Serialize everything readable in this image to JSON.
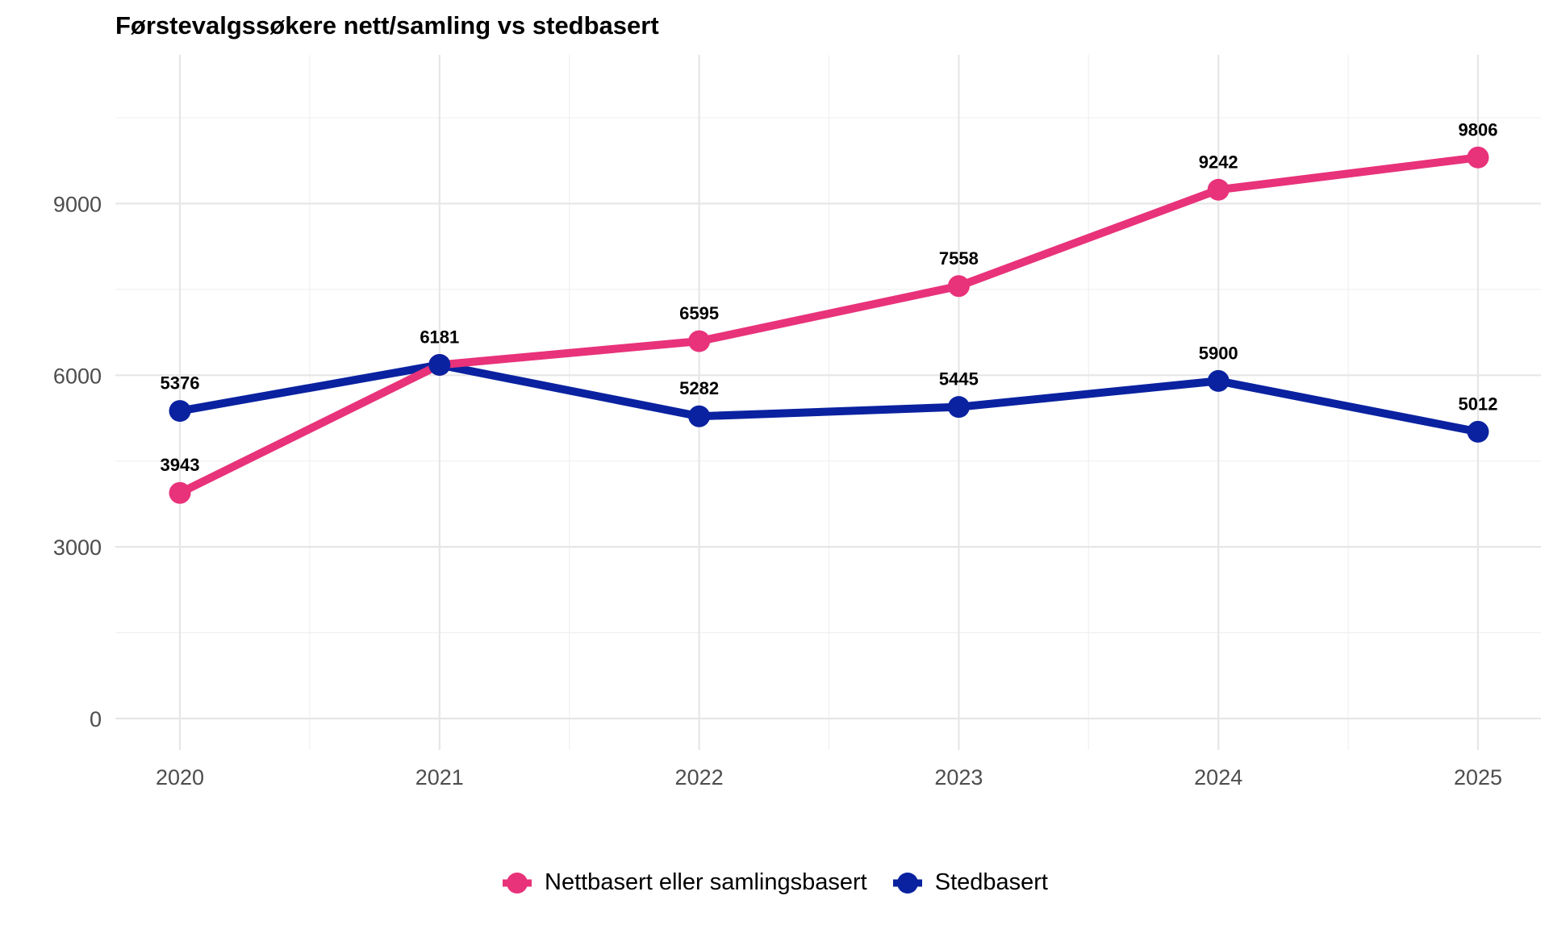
{
  "chart_data": {
    "type": "line",
    "title": "Førstevalgssøkere nett/samling vs stedbasert",
    "xlabel": "",
    "ylabel": "",
    "categories": [
      "2020",
      "2021",
      "2022",
      "2023",
      "2024",
      "2025"
    ],
    "y_ticks": [
      "0",
      "3000",
      "6000",
      "9000"
    ],
    "ylim": [
      -550,
      11600
    ],
    "grid": true,
    "legend_position": "bottom",
    "series": [
      {
        "name": "Nettbasert eller samlingsbasert",
        "color": "#e8327a",
        "values": [
          3943,
          6181,
          6595,
          7558,
          9242,
          9806
        ],
        "labels": [
          "3943",
          "6181",
          "6595",
          "7558",
          "9242",
          "9806"
        ]
      },
      {
        "name": "Stedbasert",
        "color": "#0a22a0",
        "values": [
          5376,
          6181,
          5282,
          5445,
          5900,
          5012
        ],
        "labels": [
          "5376",
          "",
          "5282",
          "5445",
          "5900",
          "5012"
        ]
      }
    ]
  }
}
